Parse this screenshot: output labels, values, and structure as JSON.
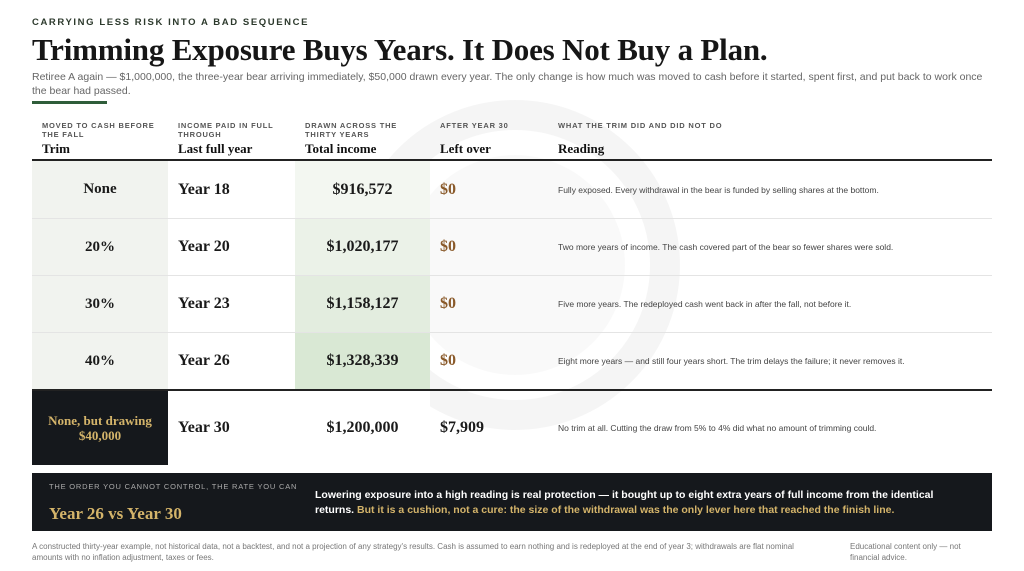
{
  "header": {
    "kicker": "CARRYING LESS RISK INTO A BAD SEQUENCE",
    "title": "Trimming Exposure Buys Years. It Does Not Buy a Plan.",
    "subtitle": "Retiree A again — $1,000,000, the three-year bear arriving immediately, $50,000 drawn every year. The only change is how much was moved to cash before it started, spent first, and put back to work once the bear had passed."
  },
  "table": {
    "columns": [
      {
        "label": "MOVED TO CASH BEFORE THE FALL",
        "heading": "Trim"
      },
      {
        "label": "INCOME PAID IN FULL THROUGH",
        "heading": "Last full year"
      },
      {
        "label": "DRAWN ACROSS THE THIRTY YEARS",
        "heading": "Total income"
      },
      {
        "label": "AFTER YEAR 30",
        "heading": "Left over"
      },
      {
        "label": "WHAT THE TRIM DID AND DID NOT DO",
        "heading": "Reading"
      }
    ],
    "rows": [
      [
        "None",
        "Year 18",
        "$916,572",
        "$0",
        "Fully exposed. Every withdrawal in the bear is funded by selling shares at the bottom."
      ],
      [
        "20%",
        "Year 20",
        "$1,020,177",
        "$0",
        "Two more years of income. The cash covered part of the bear so fewer shares were sold."
      ],
      [
        "30%",
        "Year 23",
        "$1,158,127",
        "$0",
        "Five more years. The redeployed cash went back in after the fall, not before it."
      ],
      [
        "40%",
        "Year 26",
        "$1,328,339",
        "$0",
        "Eight more years — and still four years short. The trim delays the failure; it never removes it."
      ],
      [
        "None, but drawing $40,000",
        "Year 30",
        "$1,200,000",
        "$7,909",
        "No trim at all. Cutting the draw from 5% to 4% did what no amount of trimming could."
      ]
    ]
  },
  "callout": {
    "label": "THE ORDER YOU CANNOT CONTROL, THE RATE YOU CAN",
    "highlight": "Year 26 vs Year 30",
    "text": [
      "Lowering exposure into a high reading is real protection — it bought up to ",
      "eight extra years",
      " of full income from the identical returns. ",
      "But it is a cushion, not a cure: the size of the withdrawal was the only lever here that reached the finish line."
    ]
  },
  "footer": {
    "note": "A constructed thirty-year example, not historical data, not a backtest, and not a projection of any strategy's results. Cash is assumed to earn nothing and is redeployed at the end of year 3; withdrawals are flat nominal amounts with no inflation adjustment, taxes or fees.",
    "disclaimer": "Educational content only — not financial advice."
  }
}
